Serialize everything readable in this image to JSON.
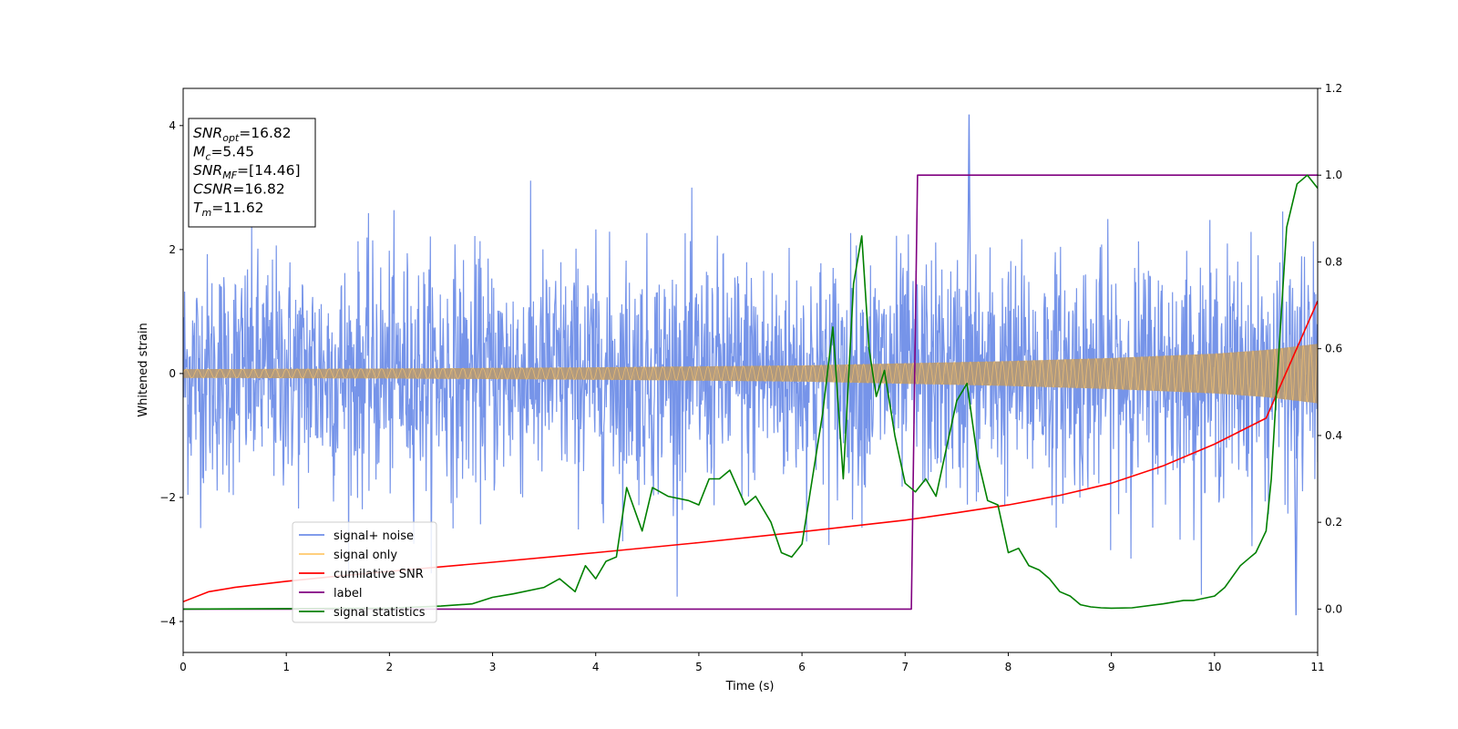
{
  "chart_data": {
    "type": "line",
    "xlabel": "Time (s)",
    "ylabel": "Whitened strain",
    "xlim": [
      0,
      11
    ],
    "ylim": [
      -4.5,
      4.6
    ],
    "y2lim": [
      -0.1,
      1.2
    ],
    "grid": false,
    "x_ticks": [
      "0",
      "1",
      "2",
      "3",
      "4",
      "5",
      "6",
      "7",
      "8",
      "9",
      "10",
      "11"
    ],
    "y_ticks": [
      "−4",
      "−2",
      "0",
      "2",
      "4"
    ],
    "y2_ticks": [
      "0.0",
      "0.2",
      "0.4",
      "0.6",
      "0.8",
      "1.0",
      "1.2"
    ],
    "info_box": {
      "lines": [
        {
          "base": "SNR",
          "sub": "opt",
          "value": "=16.82"
        },
        {
          "base": "M",
          "sub": "c",
          "value": "=5.45"
        },
        {
          "base": "SNR",
          "sub": "MF",
          "value": "=[14.46]"
        },
        {
          "base": "CSNR",
          "sub": "",
          "value": "=16.82"
        },
        {
          "base": "T",
          "sub": "m",
          "value": "=11.62"
        }
      ]
    },
    "legend": {
      "placement": "lower-left",
      "entries": [
        {
          "label": "signal+ noise",
          "color": "#6f8ee8"
        },
        {
          "label": "signal only",
          "color": "#ffc86b"
        },
        {
          "label": "cumilative SNR",
          "color": "#ff0000"
        },
        {
          "label": "label",
          "color": "#800080"
        },
        {
          "label": "signal statistics",
          "color": "#008000"
        }
      ]
    },
    "series": [
      {
        "name": "signal+ noise",
        "axis": "left",
        "style": "noise band",
        "color": "#6f8ee8",
        "typical_range": [
          -2.4,
          2.4
        ],
        "peak_max": 4.18,
        "peak_min": -3.9
      },
      {
        "name": "signal only",
        "axis": "left",
        "style": "chirp envelope",
        "color": "#ffc86b",
        "envelope": {
          "x": [
            0,
            2,
            4,
            6,
            8,
            9,
            10,
            10.5,
            11
          ],
          "amp": [
            0.07,
            0.08,
            0.1,
            0.13,
            0.2,
            0.25,
            0.32,
            0.38,
            0.48
          ]
        }
      },
      {
        "name": "cumilative SNR",
        "axis": "right",
        "color": "#ff0000",
        "x": [
          0,
          0.25,
          0.5,
          1,
          1.5,
          2,
          3,
          4,
          5,
          6,
          7,
          7.5,
          8,
          8.5,
          9,
          9.5,
          10,
          10.5,
          11
        ],
        "y": [
          0.017,
          0.04,
          0.05,
          0.064,
          0.076,
          0.087,
          0.108,
          0.13,
          0.153,
          0.178,
          0.205,
          0.222,
          0.24,
          0.262,
          0.29,
          0.33,
          0.38,
          0.44,
          0.71
        ]
      },
      {
        "name": "label",
        "axis": "right",
        "color": "#800080",
        "x": [
          0,
          7.06,
          7.12,
          11
        ],
        "y": [
          0.0,
          0.0,
          1.0,
          1.0
        ]
      },
      {
        "name": "signal statistics",
        "axis": "right",
        "color": "#008000",
        "x": [
          0,
          1,
          2,
          2.5,
          2.8,
          3.0,
          3.2,
          3.5,
          3.65,
          3.8,
          3.9,
          4.0,
          4.1,
          4.2,
          4.3,
          4.45,
          4.55,
          4.7,
          4.9,
          5.0,
          5.1,
          5.2,
          5.3,
          5.45,
          5.55,
          5.7,
          5.8,
          5.9,
          6.0,
          6.1,
          6.2,
          6.3,
          6.4,
          6.5,
          6.58,
          6.65,
          6.72,
          6.8,
          6.9,
          7.0,
          7.1,
          7.2,
          7.3,
          7.4,
          7.5,
          7.6,
          7.7,
          7.8,
          7.9,
          8.0,
          8.1,
          8.2,
          8.3,
          8.4,
          8.5,
          8.6,
          8.7,
          8.8,
          8.9,
          9.0,
          9.2,
          9.5,
          9.7,
          9.8,
          10.0,
          10.1,
          10.25,
          10.35,
          10.4,
          10.5,
          10.55,
          10.6,
          10.7,
          10.8,
          10.9,
          11.0
        ],
        "y": [
          0.0,
          0.001,
          0.002,
          0.007,
          0.012,
          0.027,
          0.035,
          0.05,
          0.07,
          0.04,
          0.1,
          0.07,
          0.11,
          0.12,
          0.28,
          0.18,
          0.28,
          0.26,
          0.25,
          0.24,
          0.3,
          0.3,
          0.32,
          0.24,
          0.26,
          0.2,
          0.13,
          0.12,
          0.15,
          0.3,
          0.45,
          0.65,
          0.3,
          0.75,
          0.86,
          0.6,
          0.49,
          0.55,
          0.4,
          0.29,
          0.27,
          0.3,
          0.26,
          0.37,
          0.48,
          0.52,
          0.35,
          0.25,
          0.24,
          0.13,
          0.14,
          0.1,
          0.09,
          0.07,
          0.04,
          0.03,
          0.01,
          0.005,
          0.003,
          0.002,
          0.003,
          0.012,
          0.02,
          0.02,
          0.03,
          0.05,
          0.1,
          0.12,
          0.13,
          0.18,
          0.3,
          0.5,
          0.88,
          0.98,
          1.0,
          0.97
        ]
      }
    ]
  }
}
